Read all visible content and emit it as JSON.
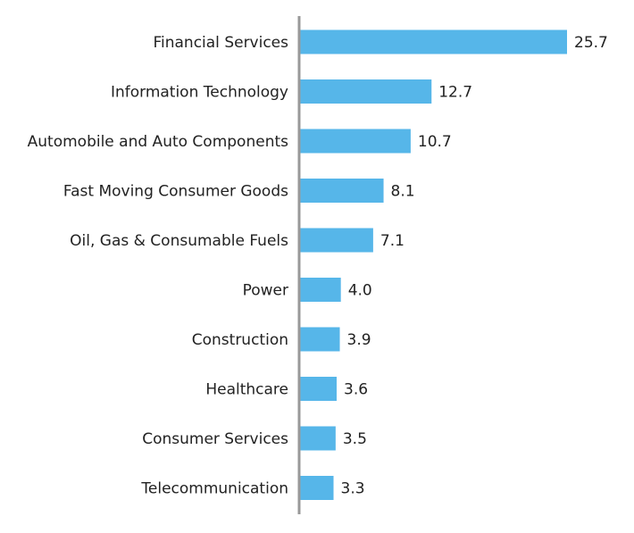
{
  "chart_data": {
    "type": "bar",
    "orientation": "horizontal",
    "categories": [
      "Financial Services",
      "Information Technology",
      "Automobile and Auto Components",
      "Fast Moving Consumer Goods",
      "Oil, Gas & Consumable Fuels",
      "Power",
      "Construction",
      "Healthcare",
      "Consumer Services",
      "Telecommunication"
    ],
    "values": [
      25.7,
      12.7,
      10.7,
      8.1,
      7.1,
      4.0,
      3.9,
      3.6,
      3.5,
      3.3
    ],
    "value_labels": [
      "25.7",
      "12.7",
      "10.7",
      "8.1",
      "7.1",
      "4.0",
      "3.9",
      "3.6",
      "3.5",
      "3.3"
    ],
    "xlim": [
      0,
      25.7
    ],
    "grid": false,
    "legend": "none",
    "bar_color": "#56B6E9",
    "axis_color": "#999999"
  }
}
